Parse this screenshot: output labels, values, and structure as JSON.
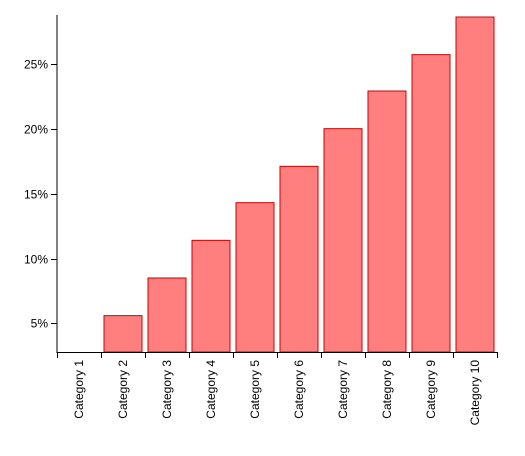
{
  "chart_data": {
    "type": "bar",
    "categories": [
      "Category 1",
      "Category 2",
      "Category 3",
      "Category 4",
      "Category 5",
      "Category 6",
      "Category 7",
      "Category 8",
      "Category 9",
      "Category 10"
    ],
    "values": [
      2.8,
      5.6,
      8.5,
      11.4,
      14.3,
      17.1,
      20.0,
      22.9,
      25.7,
      28.6
    ],
    "y_ticks": [
      5,
      10,
      15,
      20,
      25
    ],
    "y_tick_format": "%",
    "ylim": [
      2.8,
      28.6
    ],
    "title": "",
    "xlabel": "",
    "ylabel": "",
    "grid": false,
    "legend": "none",
    "bar_color": "#ff7f7f",
    "bar_stroke": "#cc0000"
  }
}
